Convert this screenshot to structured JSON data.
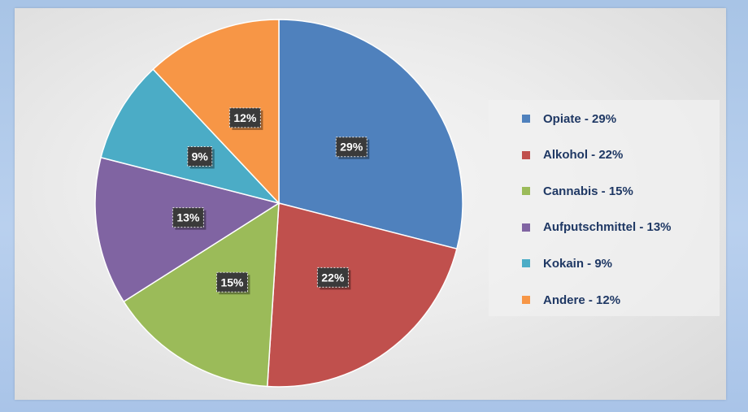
{
  "chart_data": {
    "type": "pie",
    "title": "",
    "slices": [
      {
        "label": "Opiate",
        "value": 29,
        "data_label": "29%",
        "legend": "Opiate - 29%",
        "color": "#4f81bd"
      },
      {
        "label": "Alkohol",
        "value": 22,
        "data_label": "22%",
        "legend": "Alkohol - 22%",
        "color": "#c0504d"
      },
      {
        "label": "Cannabis",
        "value": 15,
        "data_label": "15%",
        "legend": "Cannabis - 15%",
        "color": "#9bbb59"
      },
      {
        "label": "Aufputschmittel",
        "value": 13,
        "data_label": "13%",
        "legend": "Aufputschmittel - 13%",
        "color": "#8064a2"
      },
      {
        "label": "Kokain",
        "value": 9,
        "data_label": "9%",
        "legend": "Kokain - 9%",
        "color": "#4bacc6"
      },
      {
        "label": "Andere",
        "value": 12,
        "data_label": "12%",
        "legend": "Andere - 12%",
        "color": "#f79646"
      }
    ],
    "legend_position": "right",
    "start_angle": "12 o'clock",
    "direction": "clockwise"
  }
}
